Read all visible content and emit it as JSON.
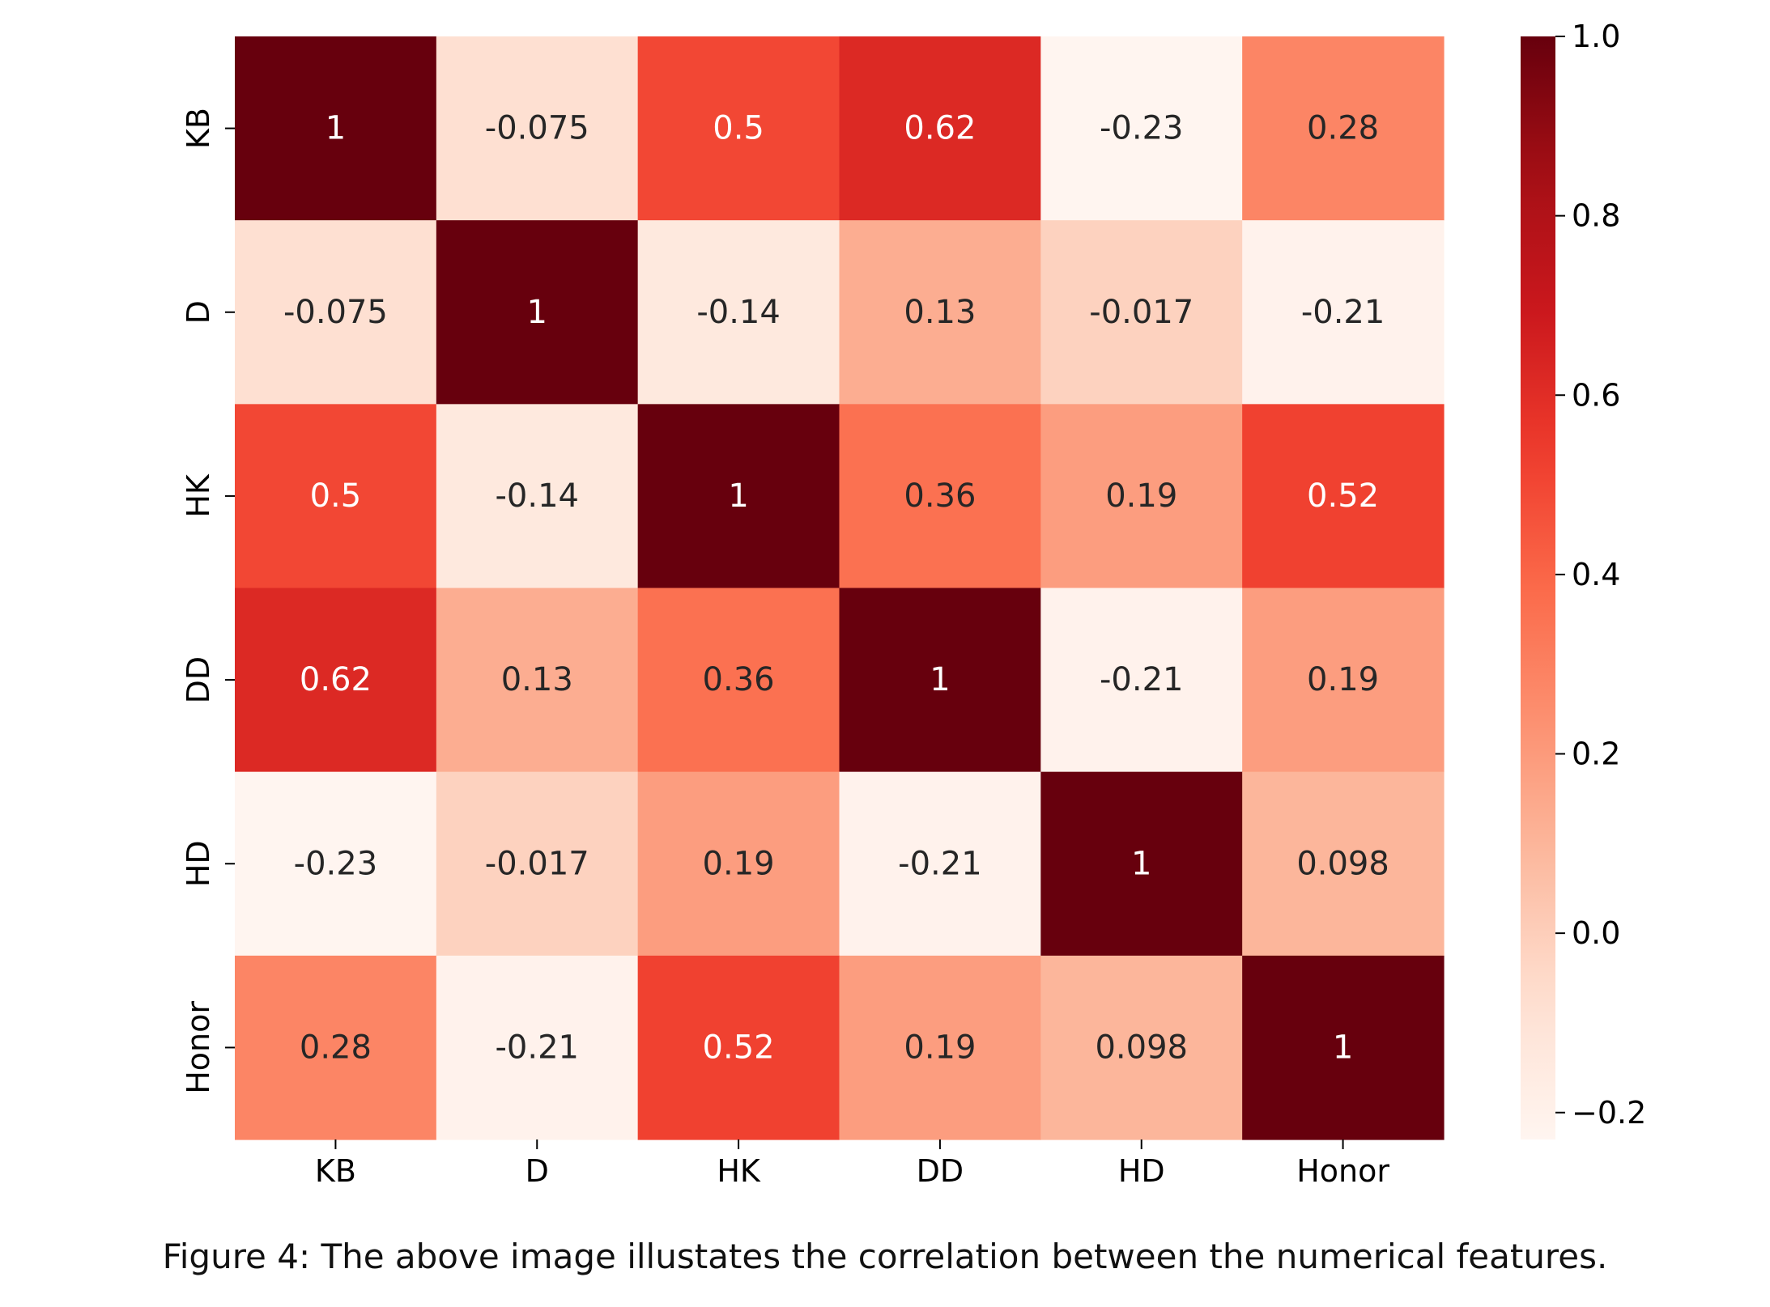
{
  "chart_data": {
    "type": "heatmap",
    "title": "",
    "xlabel": "",
    "ylabel": "",
    "x_categories": [
      "KB",
      "D",
      "HK",
      "DD",
      "HD",
      "Honor"
    ],
    "y_categories": [
      "KB",
      "D",
      "HK",
      "DD",
      "HD",
      "Honor"
    ],
    "values": [
      [
        1,
        -0.075,
        0.5,
        0.62,
        -0.23,
        0.28
      ],
      [
        -0.075,
        1,
        -0.14,
        0.13,
        -0.017,
        -0.21
      ],
      [
        0.5,
        -0.14,
        1,
        0.36,
        0.19,
        0.52
      ],
      [
        0.62,
        0.13,
        0.36,
        1,
        -0.21,
        0.19
      ],
      [
        -0.23,
        -0.017,
        0.19,
        -0.21,
        1,
        0.098
      ],
      [
        0.28,
        -0.21,
        0.52,
        0.19,
        0.098,
        1
      ]
    ],
    "annotations": [
      [
        "1",
        "-0.075",
        "0.5",
        "0.62",
        "-0.23",
        "0.28"
      ],
      [
        "-0.075",
        "1",
        "-0.14",
        "0.13",
        "-0.017",
        "-0.21"
      ],
      [
        "0.5",
        "-0.14",
        "1",
        "0.36",
        "0.19",
        "0.52"
      ],
      [
        "0.62",
        "0.13",
        "0.36",
        "1",
        "-0.21",
        "0.19"
      ],
      [
        "-0.23",
        "-0.017",
        "0.19",
        "-0.21",
        "1",
        "0.098"
      ],
      [
        "0.28",
        "-0.21",
        "0.52",
        "0.19",
        "0.098",
        "1"
      ]
    ],
    "colormap": "Reds",
    "color_range": [
      -0.23,
      1
    ],
    "colorbar": {
      "ticks": [
        -0.2,
        0.0,
        0.2,
        0.4,
        0.6,
        0.8,
        1.0
      ],
      "tick_labels": [
        "−0.2",
        "0.0",
        "0.2",
        "0.4",
        "0.6",
        "0.8",
        "1.0"
      ]
    },
    "colors": {
      "cmap_stops": [
        "#fff5f0",
        "#fee0d2",
        "#fcbba1",
        "#fc9272",
        "#fb6a4a",
        "#ef3b2c",
        "#cb181d",
        "#a50f15",
        "#67000d"
      ],
      "text_dark": "#262626",
      "text_light": "#ffffff",
      "axis": "#000000"
    }
  },
  "caption": "Figure 4: The above image illustates the correlation between the numerical features."
}
